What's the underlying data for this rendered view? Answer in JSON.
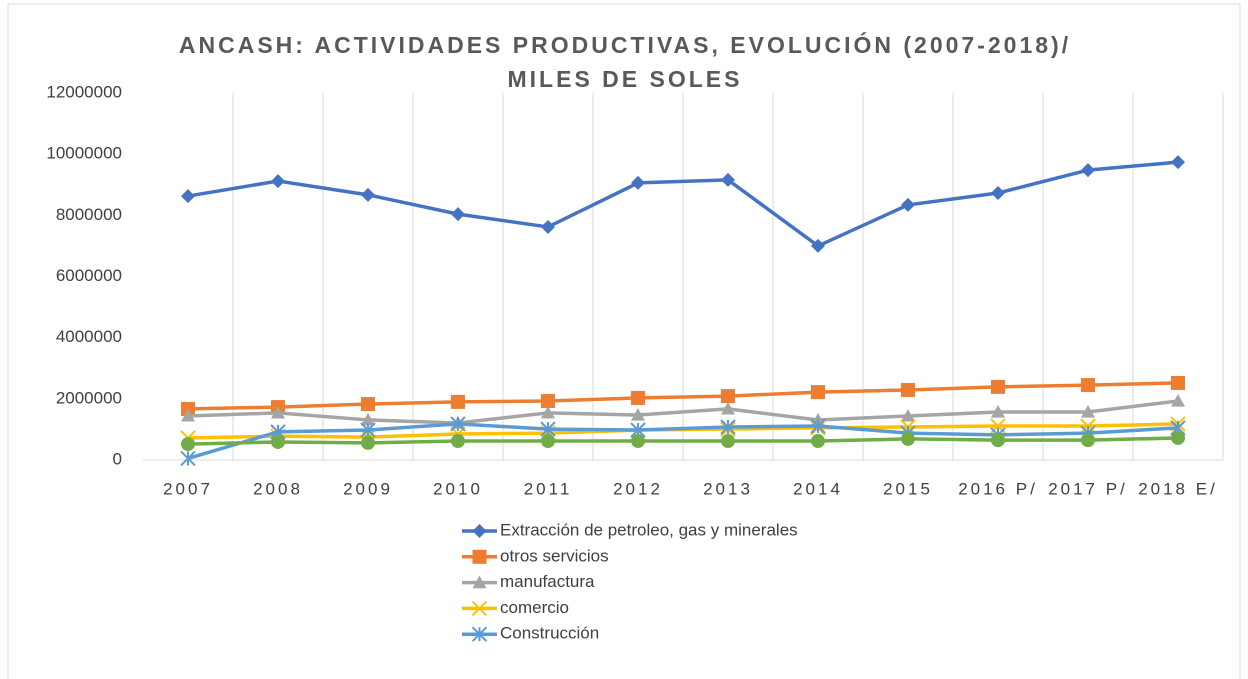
{
  "chart_data": {
    "type": "line",
    "title": "ANCASH: ACTIVIDADES PRODUCTIVAS, EVOLUCIÓN (2007-2018)/ MILES DE SOLES",
    "categories": [
      "2007",
      "2008",
      "2009",
      "2010",
      "2011",
      "2012",
      "2013",
      "2014",
      "2015",
      "2016 P/",
      "2017 P/",
      "2018 E/"
    ],
    "ylim": [
      0,
      12000000
    ],
    "yticks": [
      0,
      2000000,
      4000000,
      6000000,
      8000000,
      10000000,
      12000000
    ],
    "grid": "x",
    "legend": "bottom",
    "series": [
      {
        "name": "Extracción de petroleo, gas y minerales",
        "color": "#4472c4",
        "marker": "diamond",
        "values": [
          8630000,
          9120000,
          8670000,
          8040000,
          7620000,
          9060000,
          9160000,
          7000000,
          8340000,
          8730000,
          9480000,
          9740000
        ]
      },
      {
        "name": "otros servicios",
        "color": "#ed7d31",
        "marker": "square",
        "values": [
          1670000,
          1730000,
          1830000,
          1900000,
          1930000,
          2030000,
          2090000,
          2220000,
          2290000,
          2390000,
          2450000,
          2520000
        ]
      },
      {
        "name": "manufactura",
        "color": "#a5a5a5",
        "marker": "triangle",
        "values": [
          1440000,
          1540000,
          1310000,
          1210000,
          1540000,
          1470000,
          1670000,
          1310000,
          1440000,
          1570000,
          1570000,
          1930000
        ]
      },
      {
        "name": "comercio",
        "color": "#ffc000",
        "marker": "x",
        "values": [
          720000,
          780000,
          750000,
          850000,
          880000,
          980000,
          1010000,
          1050000,
          1080000,
          1110000,
          1110000,
          1180000
        ]
      },
      {
        "name": "Construcción",
        "color": "#5b9bd5",
        "marker": "star",
        "values": [
          50000,
          920000,
          980000,
          1180000,
          1010000,
          980000,
          1080000,
          1110000,
          880000,
          820000,
          880000,
          1050000
        ]
      },
      {
        "color": "#70ad47",
        "marker": "circle",
        "values": [
          520000,
          590000,
          560000,
          620000,
          620000,
          620000,
          620000,
          620000,
          690000,
          650000,
          650000,
          720000
        ]
      }
    ]
  }
}
